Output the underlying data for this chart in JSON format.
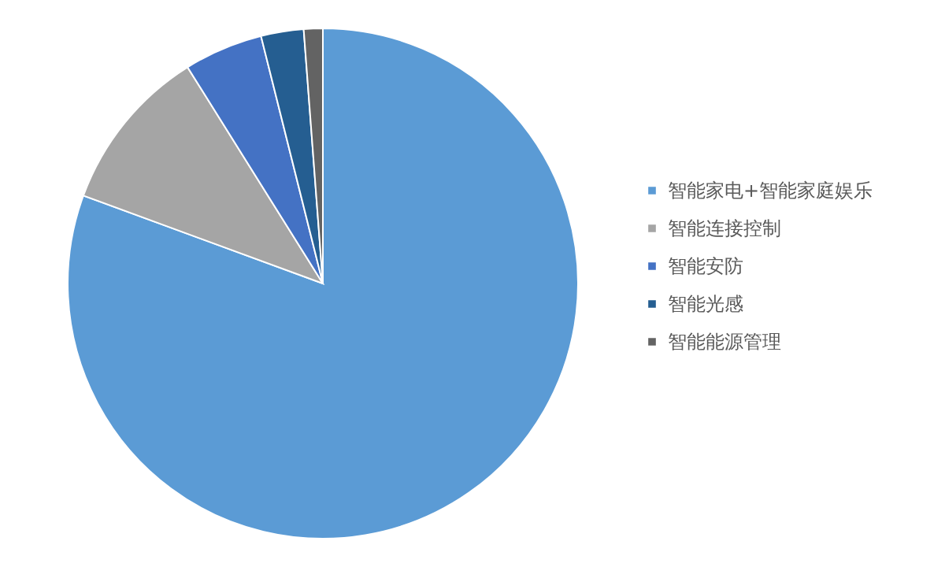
{
  "chart_data": {
    "type": "pie",
    "categories": [
      "智能家电+智能家庭娱乐",
      "智能连接控制",
      "智能安防",
      "智能光感",
      "智能能源管理"
    ],
    "values": [
      80.6,
      10.5,
      5,
      2.7,
      1.2
    ],
    "colors": [
      "#5b9bd5",
      "#a5a5a5",
      "#4472c4",
      "#255e91",
      "#636363"
    ],
    "legend": "right"
  }
}
